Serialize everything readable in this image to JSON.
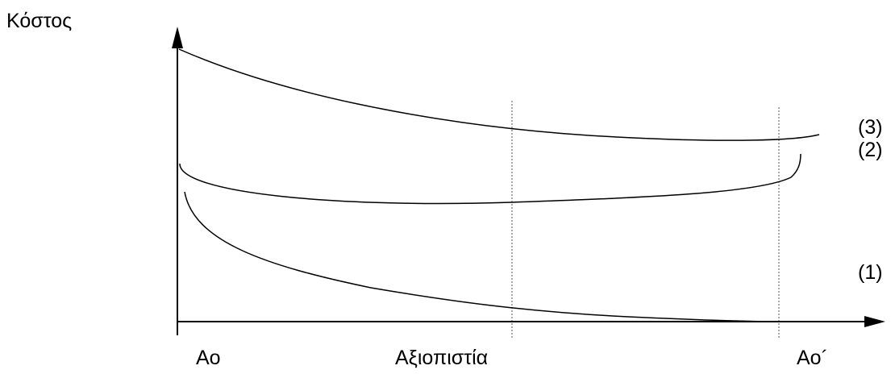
{
  "axes": {
    "y_label": "Κόστος",
    "x_label_start": "Ao",
    "x_label_center": "Αξιοπιστία",
    "x_label_end": "Ao´"
  },
  "curves": [
    {
      "label": "(3)"
    },
    {
      "label": "(2)"
    },
    {
      "label": "(1)"
    }
  ],
  "colors": {
    "line": "#000000",
    "guide": "#555555",
    "background": "#ffffff"
  }
}
